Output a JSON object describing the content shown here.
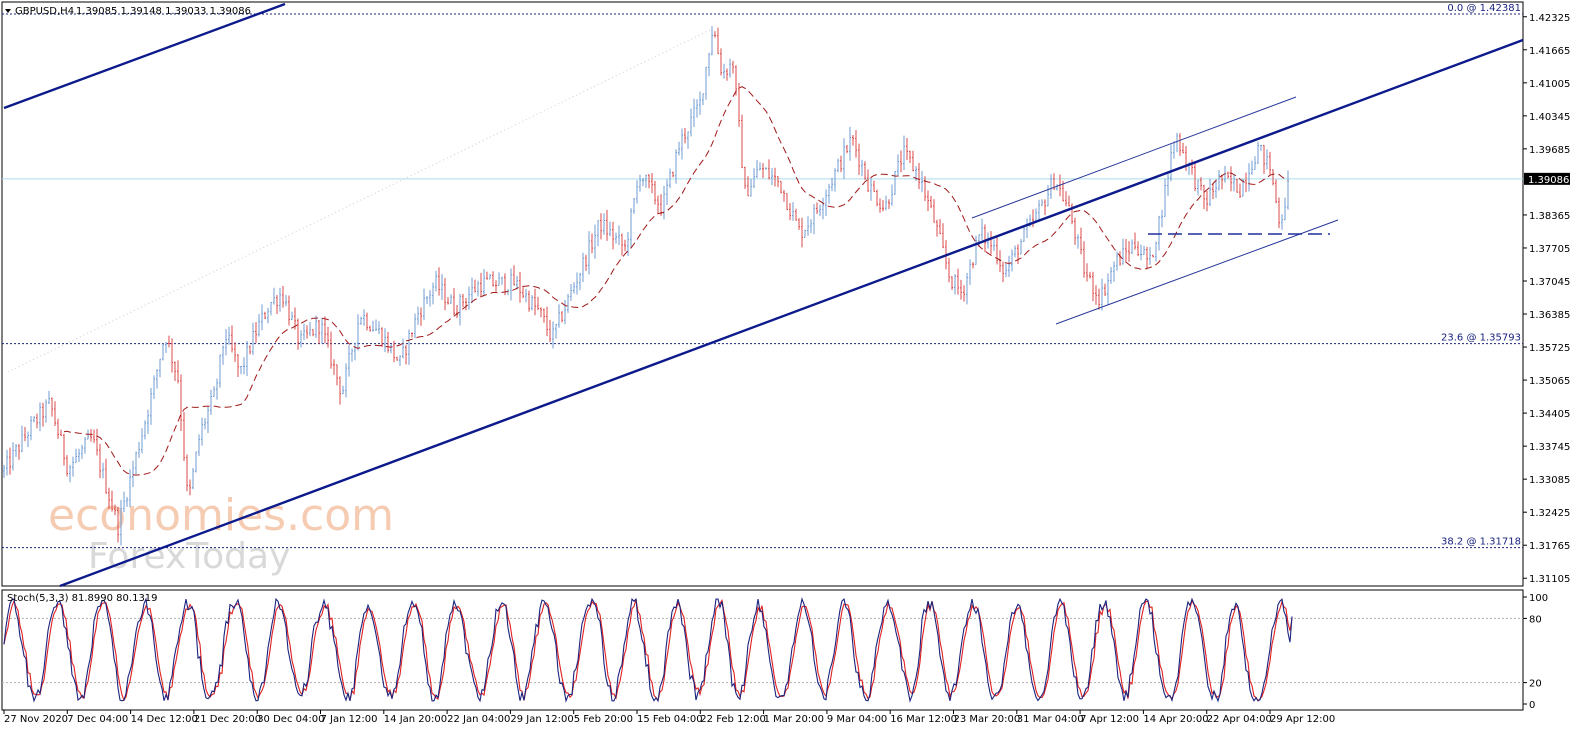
{
  "symbol_header": {
    "symbol": "GBPUSD,H4",
    "ohlc": "1.39085 1.39148 1.39033 1.39086"
  },
  "colors": {
    "bull": "#6f9bd1",
    "bear": "#d84a4a",
    "ma": "#a01818",
    "trend": "#0d1a8c",
    "fib_line": "#1a237e",
    "current_price_line": "#aadcec",
    "stoch_main": "#1a237e",
    "stoch_signal": "#e02020",
    "watermark_top": "#f5cbb2",
    "watermark_bottom": "#d9d9d9"
  },
  "price_axis": {
    "ticks": [
      "1.42325",
      "1.41665",
      "1.41005",
      "1.40345",
      "1.39685",
      "1.38365",
      "1.37705",
      "1.37045",
      "1.36385",
      "1.35725",
      "1.35065",
      "1.34405",
      "1.33745",
      "1.33085",
      "1.32425",
      "1.31765",
      "1.31105"
    ],
    "current_price": "1.39086"
  },
  "fib_levels": [
    {
      "label": "0.0 @ 1.42381",
      "price": 1.42381
    },
    {
      "label": "23.6 @ 1.35793",
      "price": 1.35793
    },
    {
      "label": "38.2 @ 1.31718",
      "price": 1.31718
    }
  ],
  "time_axis": {
    "labels": [
      "27 Nov 2020",
      "7 Dec 04:00",
      "14 Dec 12:00",
      "21 Dec 20:00",
      "30 Dec 04:00",
      "7 Jan 12:00",
      "14 Jan 20:00",
      "22 Jan 04:00",
      "29 Jan 12:00",
      "5 Feb 20:00",
      "15 Feb 04:00",
      "22 Feb 12:00",
      "1 Mar 20:00",
      "9 Mar 04:00",
      "16 Mar 12:00",
      "23 Mar 20:00",
      "31 Mar 04:00",
      "7 Apr 12:00",
      "14 Apr 20:00",
      "22 Apr 04:00",
      "29 Apr 12:00"
    ]
  },
  "stochastic": {
    "label": "Stoch(5,3,3) 81.8990 80.1319",
    "main": 81.899,
    "signal": 80.1319,
    "axis_ticks": [
      "100",
      "80",
      "20",
      "0"
    ],
    "levels": [
      80,
      20
    ]
  },
  "watermark": {
    "line1": "economies.com",
    "line2": "ForexToday"
  },
  "chart_data": {
    "type": "line",
    "symbol": "GBPUSD",
    "timeframe": "H4",
    "x": [
      "27 Nov 2020",
      "7 Dec 04:00",
      "14 Dec 12:00",
      "21 Dec 20:00",
      "30 Dec 04:00",
      "7 Jan 12:00",
      "14 Jan 20:00",
      "22 Jan 04:00",
      "29 Jan 12:00",
      "5 Feb 20:00",
      "15 Feb 04:00",
      "22 Feb 12:00",
      "1 Mar 20:00",
      "9 Mar 04:00",
      "16 Mar 12:00",
      "23 Mar 20:00",
      "31 Mar 04:00",
      "7 Apr 12:00",
      "14 Apr 20:00",
      "22 Apr 04:00",
      "29 Apr 12:00"
    ],
    "close_approx": [
      1.3325,
      1.343,
      1.333,
      1.324,
      1.358,
      1.362,
      1.356,
      1.372,
      1.366,
      1.38,
      1.393,
      1.415,
      1.39,
      1.387,
      1.39,
      1.375,
      1.378,
      1.368,
      1.376,
      1.39,
      1.387
    ],
    "last_bar": {
      "open": 1.39085,
      "high": 1.39148,
      "low": 1.39033,
      "close": 1.39086
    },
    "ylim": [
      1.3095,
      1.4262
    ],
    "grid": false,
    "lines": [
      "upper trend line",
      "lower trend line",
      "ascending channel",
      "horizontal support",
      "moving average"
    ]
  }
}
